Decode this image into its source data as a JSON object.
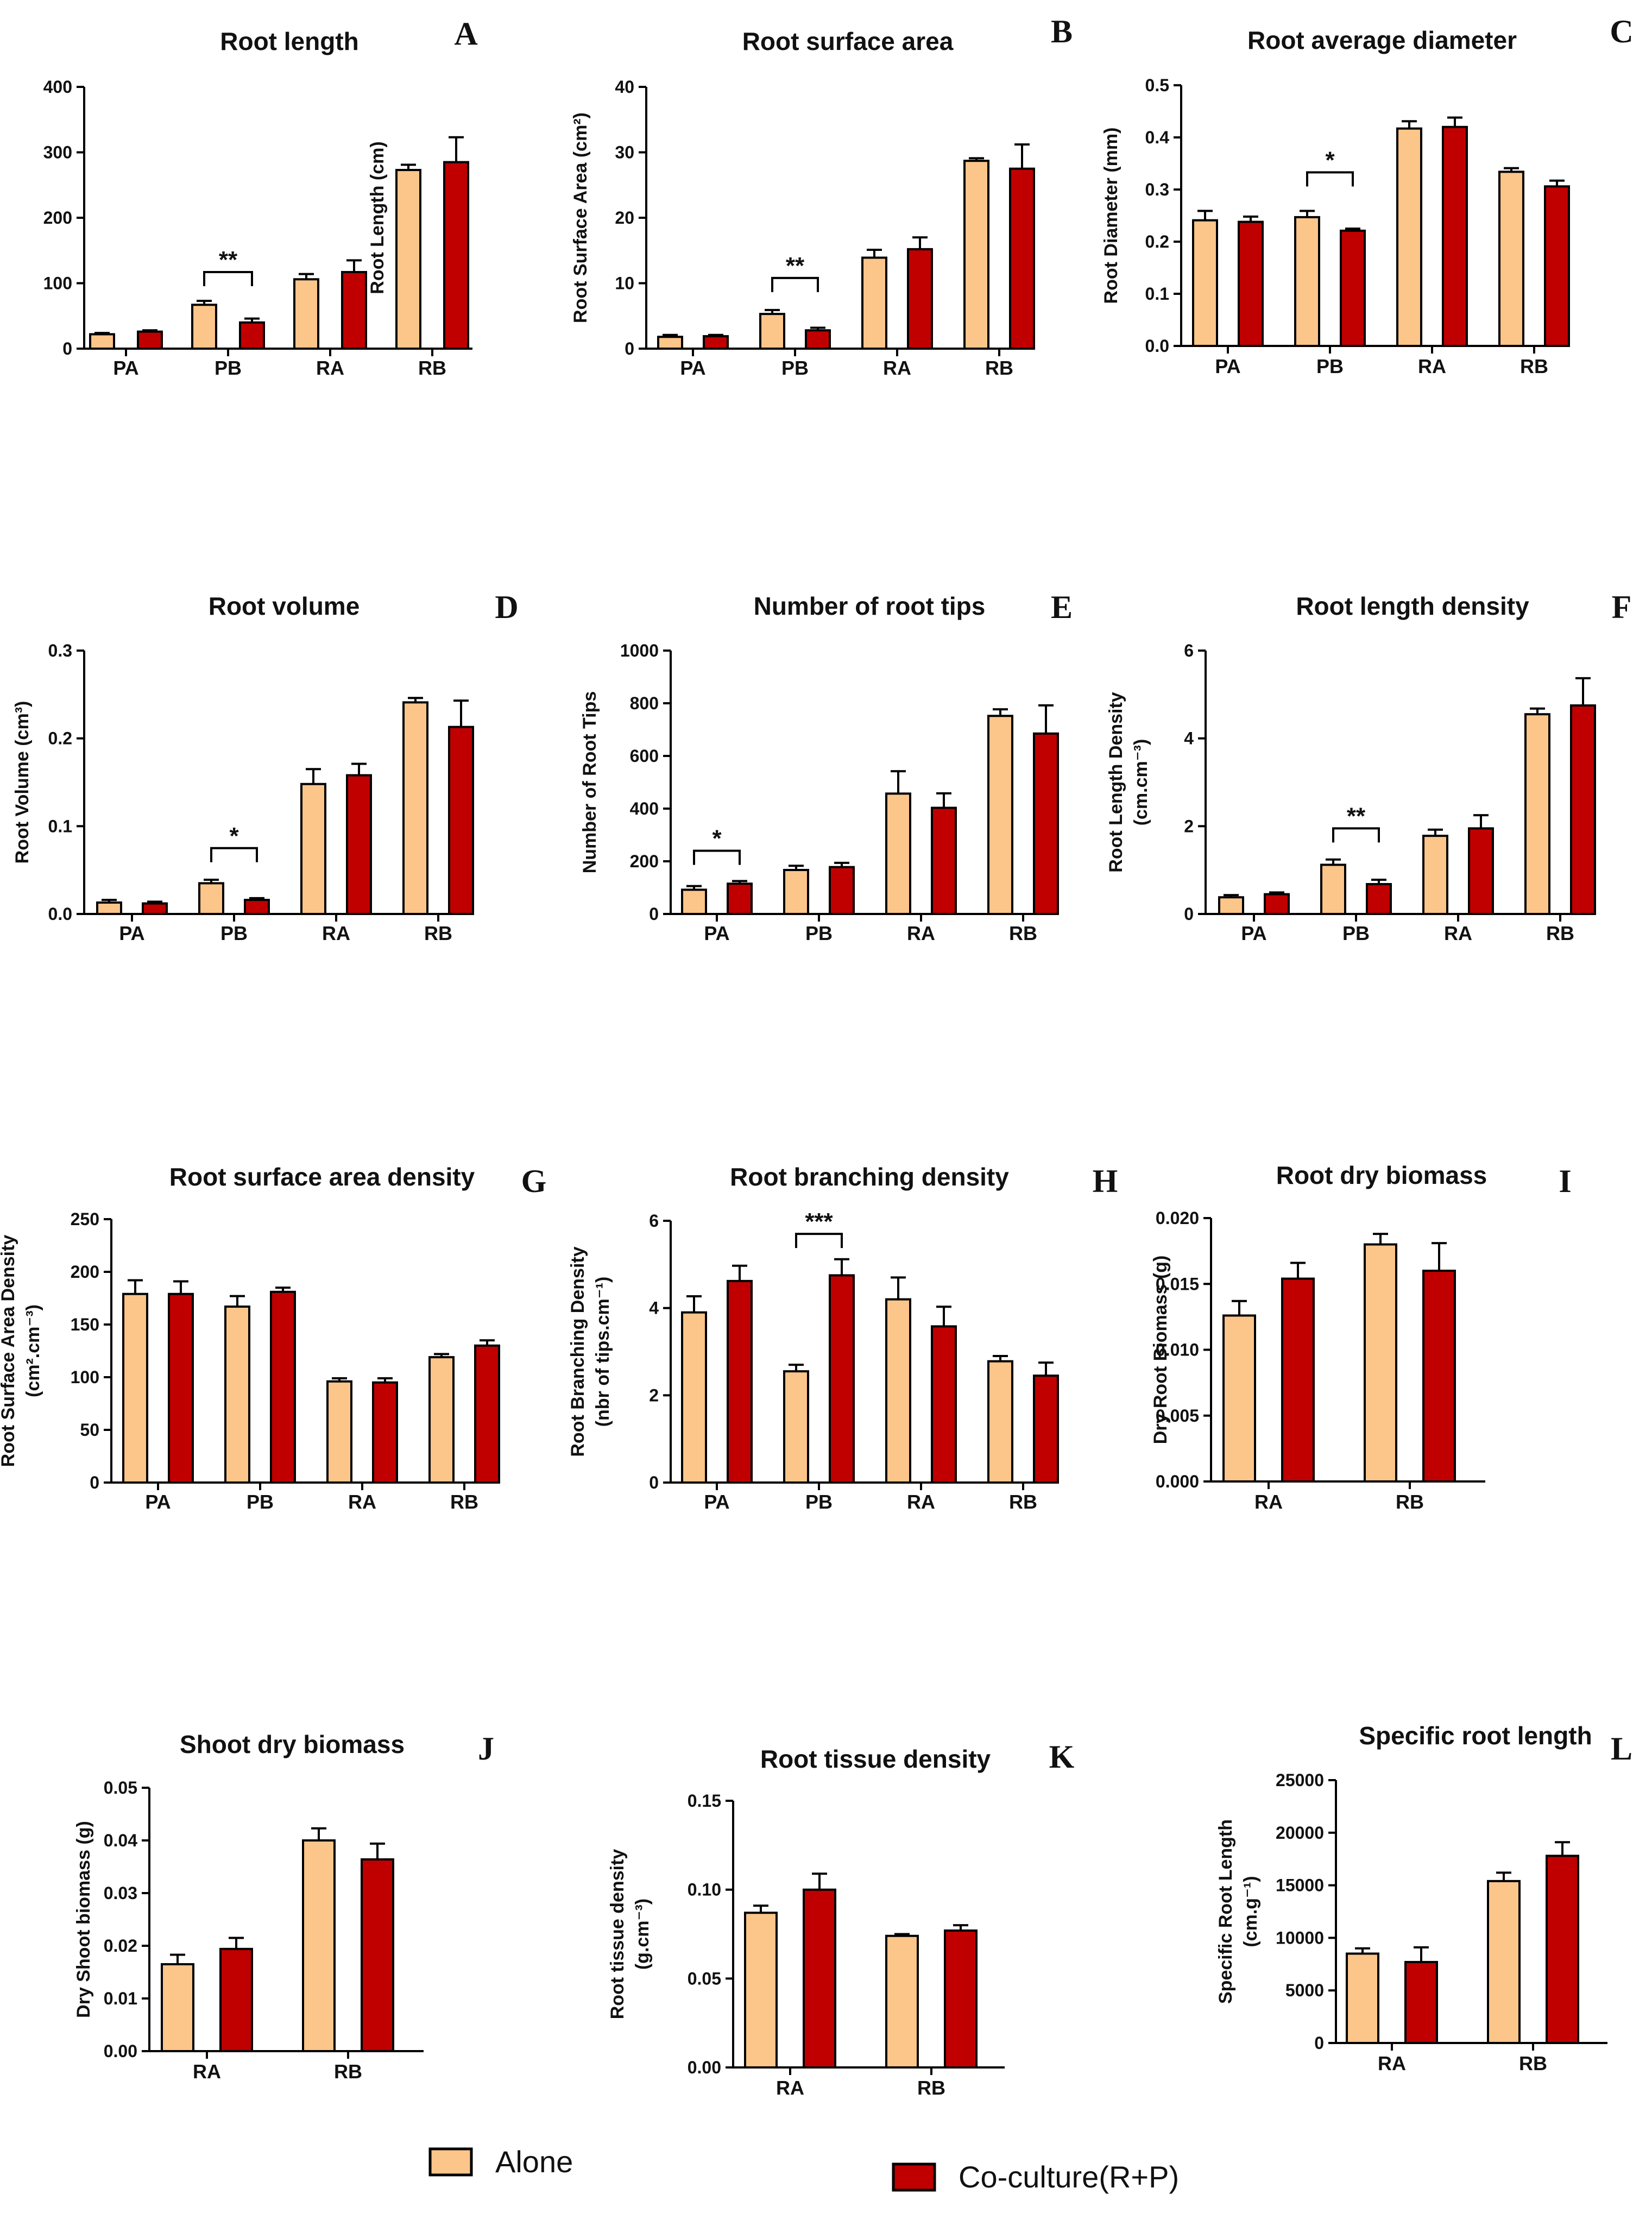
{
  "colors": {
    "alone": "#FCC58A",
    "coculture": "#C00000",
    "axis": "#000000",
    "error": "#000000"
  },
  "legend": {
    "alone": "Alone",
    "coculture": "Co-culture(R+P)"
  },
  "chart_data": [
    {
      "type": "bar",
      "letter": "A",
      "title": "Root length",
      "ylabel": [
        "Root Length (cm)"
      ],
      "categories": [
        "PA",
        "PB",
        "RA",
        "RB"
      ],
      "ylim": [
        0,
        400
      ],
      "yticks": [
        {
          "v": 0,
          "t": "0"
        },
        {
          "v": 100,
          "t": "100"
        },
        {
          "v": 200,
          "t": "200"
        },
        {
          "v": 300,
          "t": "300"
        },
        {
          "v": 400,
          "t": "400"
        }
      ],
      "series": [
        {
          "name": "Alone",
          "values": [
            22,
            67,
            106,
            273
          ],
          "errors": [
            2,
            6,
            8,
            8
          ]
        },
        {
          "name": "Co-culture(R+P)",
          "values": [
            26,
            40,
            117,
            285
          ],
          "errors": [
            2,
            6,
            18,
            38
          ]
        }
      ],
      "annotations": [
        {
          "category": "PB",
          "label": "**",
          "y": 117
        }
      ]
    },
    {
      "type": "bar",
      "letter": "B",
      "title": "Root surface area",
      "ylabel": [
        "Root Surface Area (cm²)"
      ],
      "categories": [
        "PA",
        "PB",
        "RA",
        "RB"
      ],
      "ylim": [
        0,
        40
      ],
      "yticks": [
        {
          "v": 0,
          "t": "0"
        },
        {
          "v": 10,
          "t": "10"
        },
        {
          "v": 20,
          "t": "20"
        },
        {
          "v": 30,
          "t": "30"
        },
        {
          "v": 40,
          "t": "40"
        }
      ],
      "series": [
        {
          "name": "Alone",
          "values": [
            1.8,
            5.3,
            13.9,
            28.7
          ],
          "errors": [
            0.3,
            0.6,
            1.2,
            0.4
          ]
        },
        {
          "name": "Co-culture(R+P)",
          "values": [
            1.9,
            2.8,
            15.2,
            27.5
          ],
          "errors": [
            0.2,
            0.4,
            1.8,
            3.7
          ]
        }
      ],
      "annotations": [
        {
          "category": "PB",
          "label": "**",
          "y": 10.8
        }
      ]
    },
    {
      "type": "bar",
      "letter": "C",
      "title": "Root average diameter",
      "ylabel": [
        "Root Diameter (mm)"
      ],
      "categories": [
        "PA",
        "PB",
        "RA",
        "RB"
      ],
      "ylim": [
        0,
        0.5
      ],
      "yticks": [
        {
          "v": 0,
          "t": "0.0"
        },
        {
          "v": 0.1,
          "t": "0.1"
        },
        {
          "v": 0.2,
          "t": "0.2"
        },
        {
          "v": 0.3,
          "t": "0.3"
        },
        {
          "v": 0.4,
          "t": "0.4"
        },
        {
          "v": 0.5,
          "t": "0.5"
        }
      ],
      "series": [
        {
          "name": "Alone",
          "values": [
            0.241,
            0.247,
            0.417,
            0.334
          ],
          "errors": [
            0.018,
            0.012,
            0.014,
            0.007
          ]
        },
        {
          "name": "Co-culture(R+P)",
          "values": [
            0.238,
            0.221,
            0.42,
            0.306
          ],
          "errors": [
            0.01,
            0.004,
            0.018,
            0.011
          ]
        }
      ],
      "annotations": [
        {
          "category": "PB",
          "label": "*",
          "y": 0.333
        }
      ]
    },
    {
      "type": "bar",
      "letter": "D",
      "title": "Root volume",
      "ylabel": [
        "Root Volume (cm³)"
      ],
      "categories": [
        "PA",
        "PB",
        "RA",
        "RB"
      ],
      "ylim": [
        0,
        0.3
      ],
      "yticks": [
        {
          "v": 0,
          "t": "0.0"
        },
        {
          "v": 0.1,
          "t": "0.1"
        },
        {
          "v": 0.2,
          "t": "0.2"
        },
        {
          "v": 0.3,
          "t": "0.3"
        }
      ],
      "series": [
        {
          "name": "Alone",
          "values": [
            0.013,
            0.035,
            0.148,
            0.241
          ],
          "errors": [
            0.003,
            0.004,
            0.017,
            0.005
          ]
        },
        {
          "name": "Co-culture(R+P)",
          "values": [
            0.012,
            0.016,
            0.158,
            0.213
          ],
          "errors": [
            0.002,
            0.002,
            0.013,
            0.03
          ]
        }
      ],
      "annotations": [
        {
          "category": "PB",
          "label": "*",
          "y": 0.075
        }
      ]
    },
    {
      "type": "bar",
      "letter": "E",
      "title": "Number of root tips",
      "ylabel": [
        "Number of Root Tips"
      ],
      "categories": [
        "PA",
        "PB",
        "RA",
        "RB"
      ],
      "ylim": [
        0,
        1000
      ],
      "yticks": [
        {
          "v": 0,
          "t": "0"
        },
        {
          "v": 200,
          "t": "200"
        },
        {
          "v": 400,
          "t": "400"
        },
        {
          "v": 600,
          "t": "600"
        },
        {
          "v": 800,
          "t": "800"
        },
        {
          "v": 1000,
          "t": "1000"
        }
      ],
      "series": [
        {
          "name": "Alone",
          "values": [
            92,
            167,
            457,
            752
          ],
          "errors": [
            14,
            16,
            85,
            25
          ]
        },
        {
          "name": "Co-culture(R+P)",
          "values": [
            115,
            178,
            403,
            685
          ],
          "errors": [
            10,
            16,
            55,
            107
          ]
        }
      ],
      "annotations": [
        {
          "category": "PA",
          "label": "*",
          "y": 240
        }
      ]
    },
    {
      "type": "bar",
      "letter": "F",
      "title": "Root length density",
      "ylabel": [
        "Root Length Density",
        "(cm.cm⁻³)"
      ],
      "categories": [
        "PA",
        "PB",
        "RA",
        "RB"
      ],
      "ylim": [
        0,
        6
      ],
      "yticks": [
        {
          "v": 0,
          "t": "0"
        },
        {
          "v": 2,
          "t": "2"
        },
        {
          "v": 4,
          "t": "4"
        },
        {
          "v": 6,
          "t": "6"
        }
      ],
      "series": [
        {
          "name": "Alone",
          "values": [
            0.38,
            1.12,
            1.78,
            4.55
          ],
          "errors": [
            0.05,
            0.12,
            0.14,
            0.13
          ]
        },
        {
          "name": "Co-culture(R+P)",
          "values": [
            0.45,
            0.68,
            1.95,
            4.75
          ],
          "errors": [
            0.04,
            0.1,
            0.3,
            0.62
          ]
        }
      ],
      "annotations": [
        {
          "category": "PB",
          "label": "**",
          "y": 1.95
        }
      ]
    },
    {
      "type": "bar",
      "letter": "G",
      "title": "Root surface area density",
      "ylabel": [
        "Root Surface Area Density",
        "(cm².cm⁻³)"
      ],
      "categories": [
        "PA",
        "PB",
        "RA",
        "RB"
      ],
      "ylim": [
        0,
        250
      ],
      "yticks": [
        {
          "v": 0,
          "t": "0"
        },
        {
          "v": 50,
          "t": "50"
        },
        {
          "v": 100,
          "t": "100"
        },
        {
          "v": 150,
          "t": "150"
        },
        {
          "v": 200,
          "t": "200"
        },
        {
          "v": 250,
          "t": "250"
        }
      ],
      "series": [
        {
          "name": "Alone",
          "values": [
            179,
            167,
            96,
            119
          ],
          "errors": [
            13,
            10,
            3,
            3
          ]
        },
        {
          "name": "Co-culture(R+P)",
          "values": [
            179,
            181,
            95,
            130
          ],
          "errors": [
            12,
            4,
            4,
            5
          ]
        }
      ],
      "annotations": []
    },
    {
      "type": "bar",
      "letter": "H",
      "title": "Root branching density",
      "ylabel": [
        "Root Branching Density",
        "(nbr of tips.cm⁻¹)"
      ],
      "categories": [
        "PA",
        "PB",
        "RA",
        "RB"
      ],
      "ylim": [
        0,
        6
      ],
      "yticks": [
        {
          "v": 0,
          "t": "0"
        },
        {
          "v": 2,
          "t": "2"
        },
        {
          "v": 4,
          "t": "4"
        },
        {
          "v": 6,
          "t": "6"
        }
      ],
      "series": [
        {
          "name": "Alone",
          "values": [
            3.9,
            2.55,
            4.2,
            2.78
          ],
          "errors": [
            0.37,
            0.15,
            0.5,
            0.12
          ]
        },
        {
          "name": "Co-culture(R+P)",
          "values": [
            4.62,
            4.75,
            3.58,
            2.45
          ],
          "errors": [
            0.35,
            0.37,
            0.45,
            0.3
          ]
        }
      ],
      "annotations": [
        {
          "category": "PB",
          "label": "***",
          "y": 5.7
        }
      ]
    },
    {
      "type": "bar",
      "letter": "I",
      "title": "Root dry biomass",
      "ylabel": [
        "Dry Root Biomass (g)"
      ],
      "categories": [
        "RA",
        "RB"
      ],
      "ylim": [
        0,
        0.02
      ],
      "yticks": [
        {
          "v": 0,
          "t": "0.000"
        },
        {
          "v": 0.005,
          "t": "0.005"
        },
        {
          "v": 0.01,
          "t": "0.010"
        },
        {
          "v": 0.015,
          "t": "0.015"
        },
        {
          "v": 0.02,
          "t": "0.020"
        }
      ],
      "series": [
        {
          "name": "Alone",
          "values": [
            0.0126,
            0.018
          ],
          "errors": [
            0.0011,
            0.0008
          ]
        },
        {
          "name": "Co-culture(R+P)",
          "values": [
            0.0154,
            0.016
          ],
          "errors": [
            0.0012,
            0.0021
          ]
        }
      ],
      "annotations": []
    },
    {
      "type": "bar",
      "letter": "J",
      "title": "Shoot dry biomass",
      "ylabel": [
        "Dry Shoot biomass (g)"
      ],
      "categories": [
        "RA",
        "RB"
      ],
      "ylim": [
        0,
        0.05
      ],
      "yticks": [
        {
          "v": 0,
          "t": "0.00"
        },
        {
          "v": 0.01,
          "t": "0.01"
        },
        {
          "v": 0.02,
          "t": "0.02"
        },
        {
          "v": 0.03,
          "t": "0.03"
        },
        {
          "v": 0.04,
          "t": "0.04"
        },
        {
          "v": 0.05,
          "t": "0.05"
        }
      ],
      "series": [
        {
          "name": "Alone",
          "values": [
            0.0165,
            0.04
          ],
          "errors": [
            0.0018,
            0.0023
          ]
        },
        {
          "name": "Co-culture(R+P)",
          "values": [
            0.0194,
            0.0364
          ],
          "errors": [
            0.0021,
            0.003
          ]
        }
      ],
      "annotations": []
    },
    {
      "type": "bar",
      "letter": "K",
      "title": "Root tissue density",
      "ylabel": [
        "Root tissue density",
        "(g.cm⁻³)"
      ],
      "categories": [
        "RA",
        "RB"
      ],
      "ylim": [
        0,
        0.15
      ],
      "yticks": [
        {
          "v": 0,
          "t": "0.00"
        },
        {
          "v": 0.05,
          "t": "0.05"
        },
        {
          "v": 0.1,
          "t": "0.10"
        },
        {
          "v": 0.15,
          "t": "0.15"
        }
      ],
      "series": [
        {
          "name": "Alone",
          "values": [
            0.087,
            0.074
          ],
          "errors": [
            0.004,
            0.001
          ]
        },
        {
          "name": "Co-culture(R+P)",
          "values": [
            0.1,
            0.077
          ],
          "errors": [
            0.009,
            0.003
          ]
        }
      ],
      "annotations": []
    },
    {
      "type": "bar",
      "letter": "L",
      "title": "Specific root length",
      "ylabel": [
        "Specific Root Length",
        "(cm.g⁻¹)"
      ],
      "categories": [
        "RA",
        "RB"
      ],
      "ylim": [
        0,
        25000
      ],
      "yticks": [
        {
          "v": 0,
          "t": "0"
        },
        {
          "v": 5000,
          "t": "5000"
        },
        {
          "v": 10000,
          "t": "10000"
        },
        {
          "v": 15000,
          "t": "15000"
        },
        {
          "v": 20000,
          "t": "20000"
        },
        {
          "v": 25000,
          "t": "25000"
        }
      ],
      "series": [
        {
          "name": "Alone",
          "values": [
            8500,
            15400
          ],
          "errors": [
            500,
            800
          ]
        },
        {
          "name": "Co-culture(R+P)",
          "values": [
            7700,
            17800
          ],
          "errors": [
            1400,
            1300
          ]
        }
      ],
      "annotations": []
    }
  ]
}
